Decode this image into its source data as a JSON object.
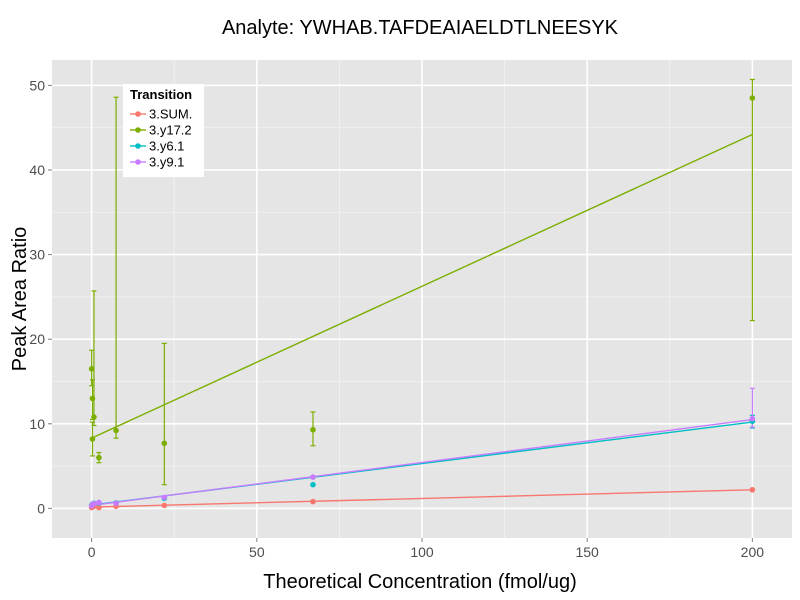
{
  "chart_data": {
    "type": "scatter",
    "title": "Analyte: YWHAB.TAFDEAIAELDTLNEESYK",
    "xlabel": "Theoretical Concentration (fmol/ug)",
    "ylabel": "Peak Area Ratio",
    "xlim": [
      -12,
      212
    ],
    "ylim": [
      -3.5,
      53
    ],
    "x_ticks": [
      0,
      50,
      100,
      150,
      200
    ],
    "x_tick_labels": [
      "0",
      "50",
      "100",
      "150",
      "200"
    ],
    "y_ticks": [
      0,
      10,
      20,
      30,
      40,
      50
    ],
    "y_tick_labels": [
      "0",
      "10",
      "20",
      "30",
      "40",
      "50"
    ],
    "grid": true,
    "legend": {
      "title": "Transition",
      "position": "top-left"
    },
    "series": [
      {
        "name": "3.SUM.",
        "color": "#F8766D",
        "points": [
          [
            0,
            0.1
          ],
          [
            0.25,
            0.2
          ],
          [
            0.7,
            0.25
          ],
          [
            2.2,
            0.1
          ],
          [
            7.4,
            0.25
          ],
          [
            22,
            0.35
          ],
          [
            67,
            0.8
          ],
          [
            200,
            2.2
          ]
        ],
        "errorbars": [],
        "fit": [
          [
            0,
            0.15
          ],
          [
            200,
            2.2
          ]
        ]
      },
      {
        "name": "3.y17.2",
        "color": "#7CAE00",
        "points": [
          [
            0,
            16.5
          ],
          [
            0.25,
            13.0
          ],
          [
            0.25,
            8.2
          ],
          [
            0.7,
            10.8
          ],
          [
            2.2,
            6.0
          ],
          [
            7.4,
            9.2
          ],
          [
            22,
            7.7
          ],
          [
            67,
            9.3
          ],
          [
            200,
            48.5
          ]
        ],
        "errorbars": [
          [
            0,
            14.5,
            18.7
          ],
          [
            0.25,
            10.5,
            15.2
          ],
          [
            0.25,
            6.2,
            10.2
          ],
          [
            0.7,
            9.8,
            25.7
          ],
          [
            2.2,
            5.4,
            6.6
          ],
          [
            7.4,
            8.3,
            48.6
          ],
          [
            22,
            2.8,
            19.5
          ],
          [
            67,
            7.4,
            11.4
          ],
          [
            200,
            22.2,
            50.7
          ]
        ],
        "fit": [
          [
            0,
            8.3
          ],
          [
            200,
            44.2
          ]
        ]
      },
      {
        "name": "3.y6.1",
        "color": "#00BFC4",
        "points": [
          [
            0,
            0.35
          ],
          [
            0.25,
            0.5
          ],
          [
            0.7,
            0.6
          ],
          [
            2.2,
            0.65
          ],
          [
            7.4,
            0.65
          ],
          [
            22,
            1.2
          ],
          [
            67,
            2.8
          ],
          [
            200,
            10.3
          ]
        ],
        "errorbars": [
          [
            200,
            9.5,
            11.0
          ]
        ],
        "fit": [
          [
            0,
            0.4
          ],
          [
            200,
            10.2
          ]
        ]
      },
      {
        "name": "3.y9.1",
        "color": "#C77CFF",
        "points": [
          [
            0,
            0.3
          ],
          [
            0.25,
            0.45
          ],
          [
            0.7,
            0.55
          ],
          [
            2.2,
            0.7
          ],
          [
            7.4,
            0.6
          ],
          [
            22,
            1.3
          ],
          [
            67,
            3.7
          ],
          [
            200,
            10.6
          ]
        ],
        "errorbars": [
          [
            200,
            9.6,
            14.2
          ]
        ],
        "fit": [
          [
            0,
            0.35
          ],
          [
            200,
            10.5
          ]
        ]
      }
    ]
  }
}
